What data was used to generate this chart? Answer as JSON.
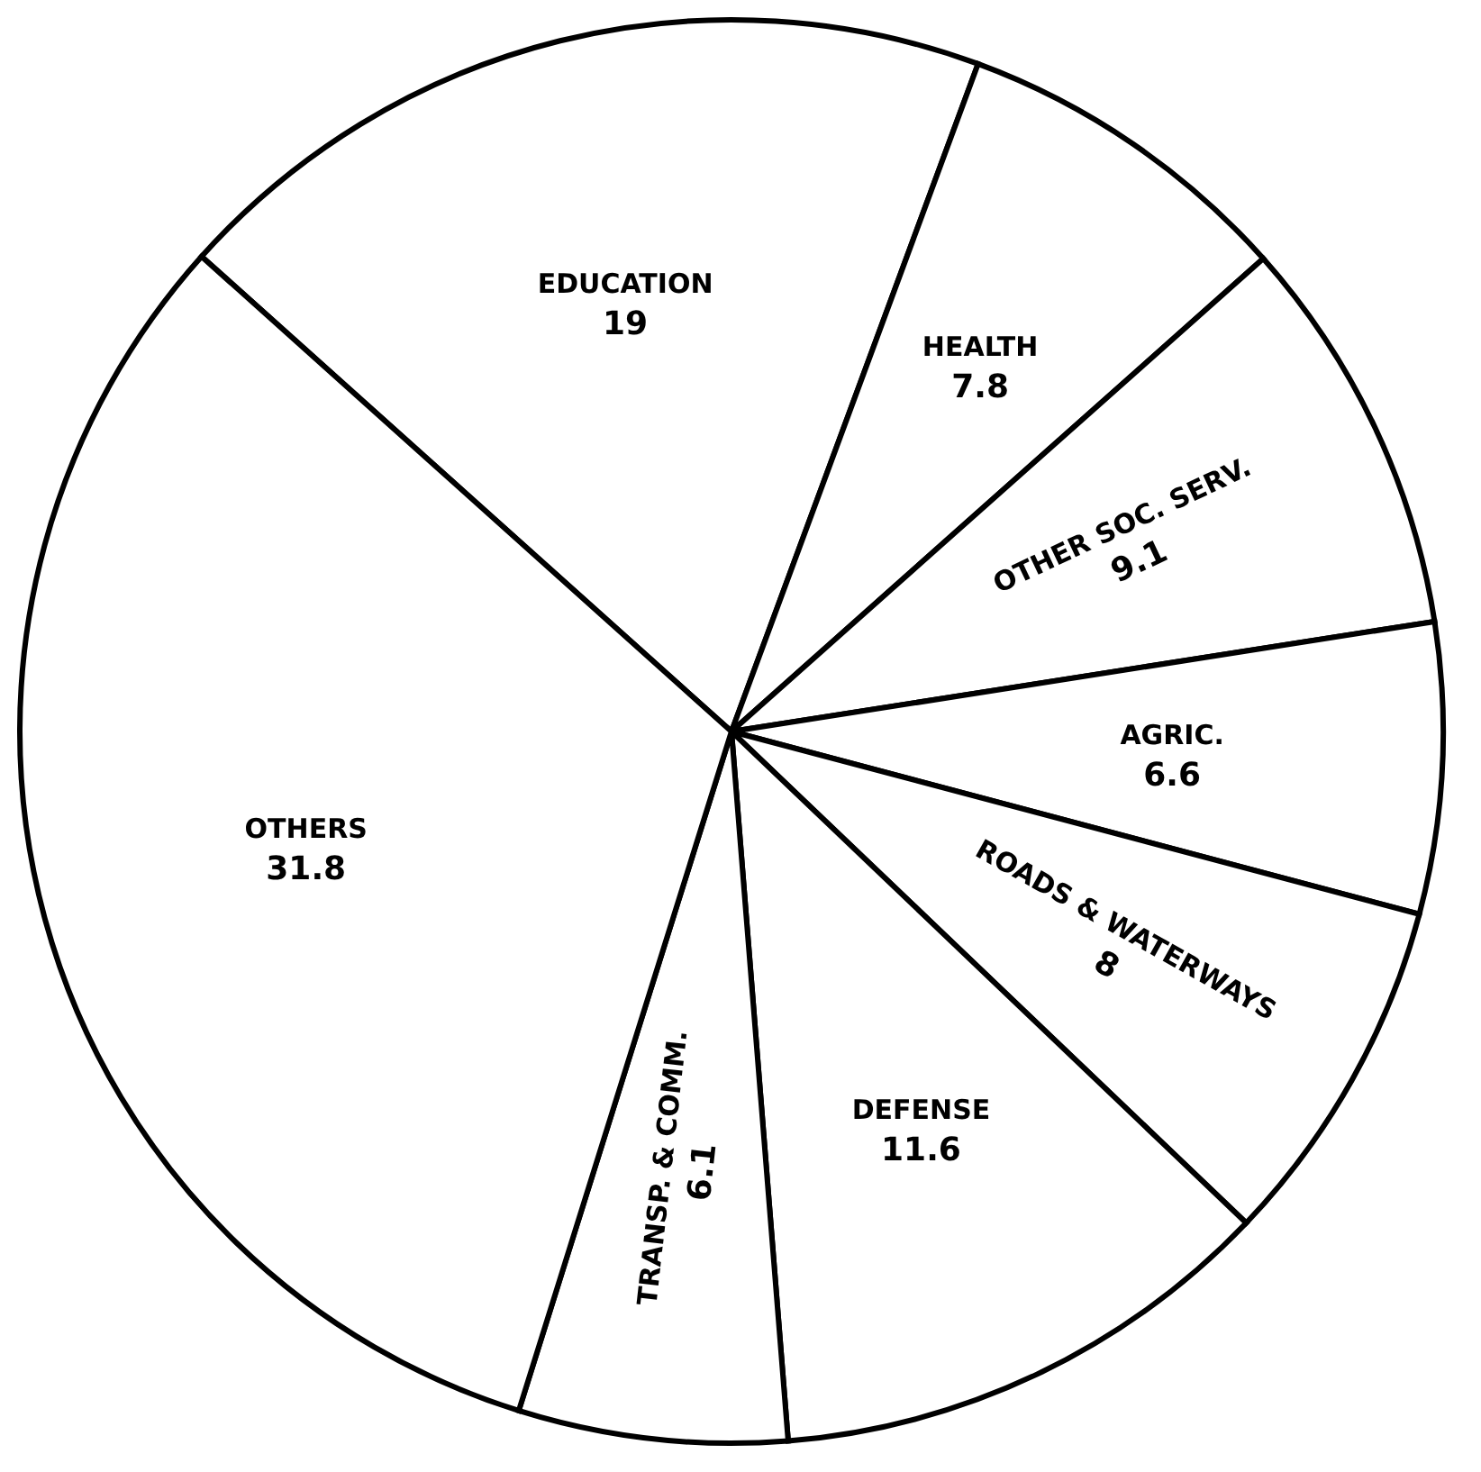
{
  "chart_data": {
    "type": "pie",
    "categories": [
      "EDUCATION",
      "HEALTH",
      "OTHER SOC. SERV.",
      "AGRIC.",
      "ROADS & WATERWAYS",
      "DEFENSE",
      "TRANSP. & COMM.",
      "OTHERS"
    ],
    "values": [
      19,
      7.8,
      9.1,
      6.6,
      8,
      11.6,
      6.1,
      31.8
    ],
    "colors": [
      "#ffffff",
      "#ffffff",
      "#ffffff",
      "#ffffff",
      "#ffffff",
      "#ffffff",
      "#ffffff",
      "#ffffff"
    ],
    "data_labels": true
  }
}
